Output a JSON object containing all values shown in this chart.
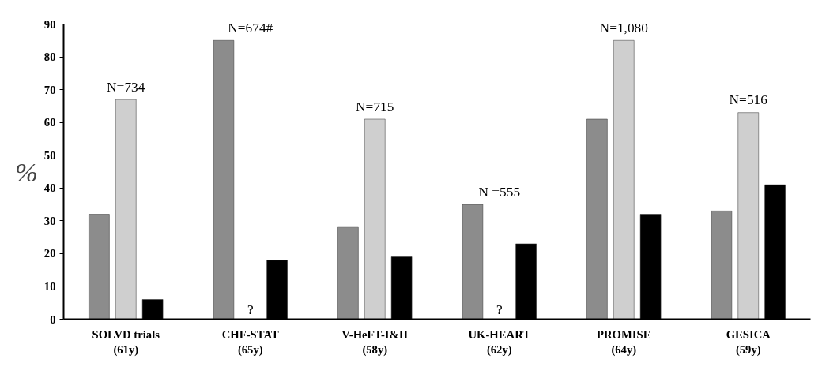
{
  "chart_data": {
    "type": "bar",
    "ylabel": "%",
    "categories": [
      "SOLVD trials\n(61y)",
      "CHF-STAT\n(65y)",
      "V-HeFT-I&II\n(58y)",
      "UK-HEART\n(62y)",
      "PROMISE\n(64y)",
      "GESICA\n(59y)"
    ],
    "series": [
      {
        "color": "#8c8c8c",
        "values": [
          32,
          85,
          28,
          35,
          61,
          33
        ]
      },
      {
        "color": "#cfcfcf",
        "values": [
          67,
          null,
          61,
          null,
          85,
          63
        ]
      },
      {
        "color": "#000000",
        "values": [
          6,
          18,
          19,
          23,
          32,
          41
        ]
      }
    ],
    "ylim": [
      0,
      90
    ],
    "yticks": [
      0,
      10,
      20,
      30,
      40,
      50,
      60,
      70,
      80,
      90
    ],
    "grid": false,
    "annotations": [
      "N=734",
      "N=674#",
      "N=715",
      "N =555",
      "N=1,080",
      "N=516",
      "?",
      "?"
    ]
  }
}
